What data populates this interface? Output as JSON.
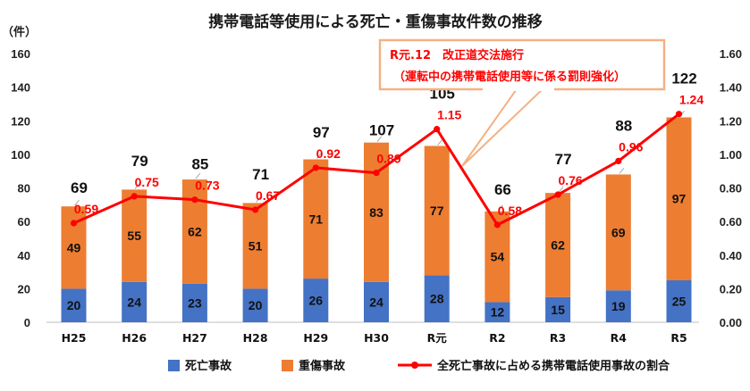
{
  "chart_data": {
    "type": "bar",
    "stacked": true,
    "title": "携帯電話等使用による死亡・重傷事故件数の推移",
    "ylabel_left": "（件）",
    "categories": [
      "H25",
      "H26",
      "H27",
      "H28",
      "H29",
      "H30",
      "R元",
      "R2",
      "R3",
      "R4",
      "R5"
    ],
    "series": [
      {
        "name": "死亡事故",
        "color": "#4472c4",
        "values": [
          20,
          24,
          23,
          20,
          26,
          24,
          28,
          12,
          15,
          19,
          25
        ]
      },
      {
        "name": "重傷事故",
        "color": "#ed7d31",
        "values": [
          49,
          55,
          62,
          51,
          71,
          83,
          77,
          54,
          62,
          69,
          97
        ]
      }
    ],
    "totals": [
      69,
      79,
      85,
      71,
      97,
      107,
      105,
      66,
      77,
      88,
      122
    ],
    "line": {
      "name": "全死亡事故に占める携帯電話使用事故の割合",
      "color": "#ff0000",
      "values": [
        0.59,
        0.75,
        0.73,
        0.67,
        0.92,
        0.89,
        1.15,
        0.58,
        0.76,
        0.96,
        1.24
      ],
      "labels": [
        "0.59",
        "0.75",
        "0.73",
        "0.67",
        "0.92",
        "0.89",
        "1.15",
        "0.58",
        "0.76",
        "0.96",
        "1.24"
      ]
    },
    "ylim_left": [
      0,
      160
    ],
    "ylim_right": [
      0,
      1.6
    ],
    "yticks_left": [
      "0",
      "20",
      "40",
      "60",
      "80",
      "100",
      "120",
      "140",
      "160"
    ],
    "yticks_right": [
      "0.00",
      "0.20",
      "0.40",
      "0.60",
      "0.80",
      "1.00",
      "1.20",
      "1.40",
      "1.60"
    ],
    "grid": false,
    "legend_position": "bottom",
    "annotation": {
      "line1": "R元.12　改正道交法施行",
      "line2": "（運転中の携帯電話使用等に係る罰則強化）",
      "points_to": "R元"
    }
  }
}
